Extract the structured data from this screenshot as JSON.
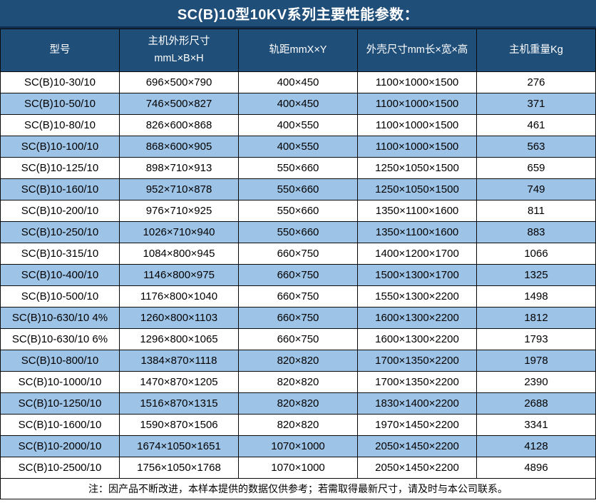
{
  "colors": {
    "header_bg": "#1f4e79",
    "header_text": "#ffffff",
    "alt_row_bg": "#9dc3e6",
    "row_bg": "#ffffff",
    "body_text": "#000000",
    "border": "#0a0a0a",
    "title_divider": "#0f2d4d"
  },
  "title": "SC(B)10型10KV系列主要性能参数：",
  "table": {
    "headers": [
      "型号",
      "主机外形尺寸\nmmL×B×H",
      "轨距mmX×Y",
      "外壳尺寸mm长×宽×高",
      "主机重量Kg"
    ],
    "rows": [
      [
        "SC(B)10-30/10",
        "696×500×790",
        "400×450",
        "1100×1000×1500",
        "276"
      ],
      [
        "SC(B)10-50/10",
        "746×500×827",
        "400×450",
        "1100×1000×1500",
        "371"
      ],
      [
        "SC(B)10-80/10",
        "826×600×868",
        "400×550",
        "1100×1000×1500",
        "461"
      ],
      [
        "SC(B)10-100/10",
        "868×600×905",
        "400×550",
        "1100×1000×1500",
        "563"
      ],
      [
        "SC(B)10-125/10",
        "898×710×913",
        "550×660",
        "1250×1050×1500",
        "659"
      ],
      [
        "SC(B)10-160/10",
        "952×710×878",
        "550×660",
        "1250×1050×1500",
        "749"
      ],
      [
        "SC(B)10-200/10",
        "976×710×925",
        "550×660",
        "1350×1100×1600",
        "811"
      ],
      [
        "SC(B)10-250/10",
        "1026×710×940",
        "550×660",
        "1350×1100×1600",
        "883"
      ],
      [
        "SC(B)10-315/10",
        "1084×800×945",
        "660×750",
        "1400×1200×1700",
        "1066"
      ],
      [
        "SC(B)10-400/10",
        "1146×800×975",
        "660×750",
        "1500×1300×1700",
        "1325"
      ],
      [
        "SC(B)10-500/10",
        "1176×800×1040",
        "660×750",
        "1550×1300×2200",
        "1498"
      ],
      [
        "SC(B)10-630/10 4%",
        "1260×800×1103",
        "660×750",
        "1600×1300×2200",
        "1812"
      ],
      [
        "SC(B)10-630/10 6%",
        "1296×800×1065",
        "660×750",
        "1600×1300×2200",
        "1793"
      ],
      [
        "SC(B)10-800/10",
        "1384×870×1118",
        "820×820",
        "1700×1350×2200",
        "1978"
      ],
      [
        "SC(B)10-1000/10",
        "1470×870×1205",
        "820×820",
        "1700×1350×2200",
        "2390"
      ],
      [
        "SC(B)10-1250/10",
        "1516×870×1315",
        "820×820",
        "1830×1400×2200",
        "2688"
      ],
      [
        "SC(B)10-1600/10",
        "1590×870×1506",
        "820×820",
        "1970×1450×2200",
        "3341"
      ],
      [
        "SC(B)10-2000/10",
        "1674×1050×1651",
        "1070×1000",
        "2050×1450×2200",
        "4128"
      ],
      [
        "SC(B)10-2500/10",
        "1756×1050×1768",
        "1070×1000",
        "2050×1450×2200",
        "4896"
      ]
    ]
  },
  "note": "注：因产品不断改进，本样本提供的数据仅供参考；若需取得最新尺寸，请及时与本公司联系。"
}
